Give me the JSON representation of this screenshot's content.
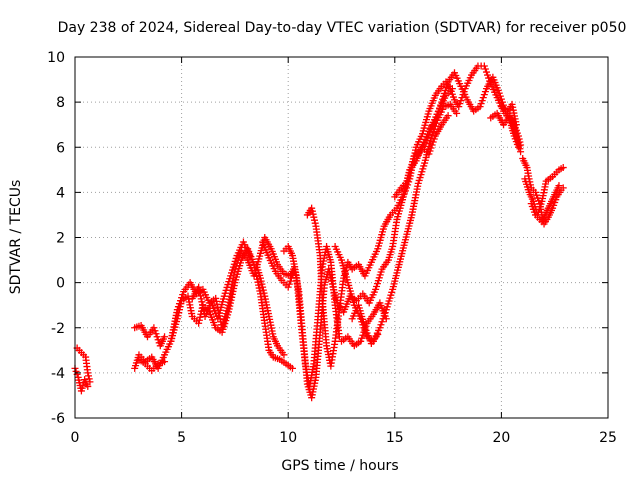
{
  "chart_data": {
    "type": "scatter",
    "title": "Day 238 of 2024, Sidereal Day-to-day VTEC variation (SDTVAR) for receiver p050",
    "xlabel": "GPS time / hours",
    "ylabel": "SDTVAR / TECUs",
    "xlim": [
      0,
      25
    ],
    "ylim": [
      -6,
      10
    ],
    "xticks": [
      0,
      5,
      10,
      15,
      20,
      25
    ],
    "yticks": [
      -6,
      -4,
      -2,
      0,
      2,
      4,
      6,
      8,
      10
    ],
    "grid": true,
    "marker": "+",
    "color": "#ff0000",
    "series": [
      {
        "name": "p050",
        "traces": [
          [
            [
              0.0,
              -3.8
            ],
            [
              0.15,
              -4.2
            ],
            [
              0.3,
              -4.8
            ],
            [
              0.45,
              -4.3
            ],
            [
              0.6,
              -4.6
            ]
          ],
          [
            [
              0.1,
              -2.9
            ],
            [
              0.3,
              -3.1
            ],
            [
              0.5,
              -3.3
            ],
            [
              0.6,
              -4.0
            ],
            [
              0.7,
              -4.4
            ]
          ],
          [
            [
              2.8,
              -3.8
            ],
            [
              3.0,
              -3.2
            ],
            [
              3.3,
              -3.5
            ],
            [
              3.6,
              -3.3
            ],
            [
              3.9,
              -3.8
            ],
            [
              4.2,
              -3.2
            ],
            [
              4.5,
              -2.6
            ],
            [
              4.8,
              -1.6
            ],
            [
              5.0,
              -0.8
            ],
            [
              5.3,
              -0.6
            ],
            [
              5.5,
              -1.5
            ],
            [
              5.8,
              -1.8
            ],
            [
              6.0,
              -1.0
            ],
            [
              6.3,
              -1.3
            ],
            [
              6.6,
              -2.0
            ],
            [
              6.9,
              -2.2
            ],
            [
              7.2,
              -1.3
            ],
            [
              7.5,
              0.0
            ],
            [
              7.8,
              1.0
            ],
            [
              8.1,
              1.5
            ],
            [
              8.4,
              0.8
            ],
            [
              8.7,
              -0.5
            ],
            [
              8.9,
              -1.8
            ],
            [
              9.1,
              -3.0
            ],
            [
              9.3,
              -3.3
            ],
            [
              9.6,
              -3.4
            ],
            [
              9.9,
              -3.6
            ],
            [
              10.2,
              -3.8
            ]
          ],
          [
            [
              2.8,
              -2.0
            ],
            [
              3.1,
              -1.9
            ],
            [
              3.4,
              -2.4
            ],
            [
              3.7,
              -2.0
            ],
            [
              4.0,
              -2.8
            ],
            [
              4.2,
              -2.4
            ]
          ],
          [
            [
              3.0,
              -3.4
            ],
            [
              3.3,
              -3.6
            ],
            [
              3.6,
              -3.9
            ],
            [
              3.9,
              -3.6
            ],
            [
              4.2,
              -3.5
            ]
          ],
          [
            [
              4.5,
              -2.6
            ],
            [
              4.8,
              -1.2
            ],
            [
              5.1,
              -0.4
            ],
            [
              5.4,
              0.0
            ],
            [
              5.7,
              -0.5
            ],
            [
              6.0,
              -0.3
            ],
            [
              6.3,
              -0.9
            ],
            [
              6.6,
              -0.7
            ],
            [
              6.9,
              -2.0
            ],
            [
              7.2,
              -1.0
            ],
            [
              7.5,
              0.6
            ],
            [
              7.8,
              1.4
            ],
            [
              8.1,
              1.0
            ],
            [
              8.4,
              0.3
            ],
            [
              8.7,
              1.3
            ],
            [
              8.9,
              2.0
            ],
            [
              9.2,
              1.5
            ],
            [
              9.5,
              0.8
            ],
            [
              9.8,
              0.4
            ],
            [
              10.1,
              0.3
            ],
            [
              10.3,
              0.7
            ]
          ],
          [
            [
              5.5,
              -0.7
            ],
            [
              5.8,
              -0.2
            ],
            [
              6.1,
              -1.5
            ],
            [
              6.4,
              -0.9
            ],
            [
              6.7,
              -1.6
            ],
            [
              7.0,
              -0.6
            ],
            [
              7.3,
              0.3
            ],
            [
              7.6,
              1.2
            ],
            [
              7.9,
              1.8
            ],
            [
              8.2,
              1.2
            ]
          ],
          [
            [
              8.5,
              0.8
            ],
            [
              8.7,
              0.2
            ],
            [
              8.9,
              -0.6
            ],
            [
              9.1,
              -1.5
            ],
            [
              9.3,
              -2.4
            ],
            [
              9.5,
              -2.8
            ],
            [
              9.8,
              -3.2
            ]
          ],
          [
            [
              8.8,
              1.8
            ],
            [
              9.1,
              1.1
            ],
            [
              9.4,
              0.5
            ],
            [
              9.7,
              0.1
            ],
            [
              10.0,
              -0.2
            ],
            [
              10.3,
              0.6
            ],
            [
              10.5,
              -0.4
            ],
            [
              10.7,
              -2.5
            ],
            [
              10.9,
              -4.5
            ],
            [
              11.1,
              -5.1
            ],
            [
              11.3,
              -4.2
            ],
            [
              11.5,
              -2.2
            ],
            [
              11.7,
              -0.1
            ],
            [
              11.9,
              0.6
            ],
            [
              12.1,
              -0.2
            ],
            [
              12.3,
              -0.9
            ],
            [
              12.6,
              -1.3
            ],
            [
              12.9,
              -0.6
            ],
            [
              13.2,
              -0.8
            ],
            [
              13.5,
              -0.5
            ],
            [
              13.8,
              -0.9
            ],
            [
              14.1,
              -0.3
            ],
            [
              14.4,
              0.6
            ],
            [
              14.7,
              1.0
            ],
            [
              14.9,
              1.6
            ],
            [
              15.1,
              2.8
            ],
            [
              15.4,
              3.8
            ],
            [
              15.7,
              4.6
            ],
            [
              16.0,
              6.0
            ],
            [
              16.3,
              6.6
            ],
            [
              16.6,
              7.6
            ],
            [
              16.9,
              8.3
            ],
            [
              17.2,
              8.7
            ],
            [
              17.4,
              8.9
            ],
            [
              17.6,
              8.6
            ],
            [
              17.8,
              8.1
            ],
            [
              18.0,
              7.8
            ],
            [
              18.3,
              8.6
            ],
            [
              18.6,
              9.2
            ],
            [
              18.9,
              9.6
            ],
            [
              19.2,
              9.6
            ],
            [
              19.5,
              8.8
            ],
            [
              19.8,
              8.2
            ],
            [
              20.1,
              7.6
            ],
            [
              20.4,
              7.2
            ],
            [
              20.6,
              6.5
            ],
            [
              20.8,
              6.0
            ]
          ],
          [
            [
              9.8,
              1.4
            ],
            [
              10.0,
              1.6
            ],
            [
              10.2,
              1.2
            ],
            [
              10.4,
              0.2
            ],
            [
              10.6,
              -1.8
            ],
            [
              10.8,
              -3.6
            ],
            [
              11.0,
              -4.6
            ],
            [
              11.2,
              -3.6
            ],
            [
              11.4,
              -1.5
            ],
            [
              11.6,
              0.7
            ],
            [
              11.8,
              1.6
            ],
            [
              12.0,
              0.9
            ],
            [
              12.2,
              -1.0
            ],
            [
              12.4,
              -2.4
            ]
          ],
          [
            [
              10.9,
              3.0
            ],
            [
              11.1,
              3.3
            ],
            [
              11.3,
              2.5
            ],
            [
              11.5,
              1.2
            ],
            [
              11.6,
              -0.8
            ],
            [
              11.8,
              -2.8
            ],
            [
              12.0,
              -3.7
            ],
            [
              12.2,
              -2.6
            ],
            [
              12.4,
              -1.2
            ],
            [
              12.6,
              0.2
            ],
            [
              12.8,
              0.9
            ],
            [
              13.0,
              0.6
            ],
            [
              13.3,
              0.8
            ],
            [
              13.6,
              0.3
            ],
            [
              13.9,
              0.9
            ],
            [
              14.2,
              1.5
            ],
            [
              14.5,
              2.5
            ],
            [
              14.8,
              3.0
            ],
            [
              15.1,
              3.3
            ],
            [
              15.4,
              3.9
            ],
            [
              15.7,
              5.0
            ],
            [
              16.0,
              5.4
            ],
            [
              16.3,
              6.1
            ],
            [
              16.6,
              6.7
            ],
            [
              16.9,
              7.2
            ],
            [
              17.2,
              8.0
            ],
            [
              17.5,
              8.9
            ],
            [
              17.8,
              9.3
            ],
            [
              18.1,
              8.7
            ],
            [
              18.4,
              8.1
            ],
            [
              18.7,
              7.6
            ],
            [
              19.0,
              7.8
            ],
            [
              19.3,
              8.6
            ],
            [
              19.6,
              9.1
            ],
            [
              19.9,
              8.4
            ],
            [
              20.2,
              7.6
            ],
            [
              20.5,
              7.3
            ],
            [
              20.7,
              6.6
            ]
          ],
          [
            [
              12.2,
              1.6
            ],
            [
              12.5,
              1.0
            ],
            [
              12.8,
              0.0
            ],
            [
              13.1,
              -1.0
            ],
            [
              13.4,
              -1.6
            ],
            [
              13.7,
              -2.4
            ],
            [
              14.0,
              -2.6
            ],
            [
              14.3,
              -2.0
            ],
            [
              14.6,
              -1.2
            ],
            [
              14.9,
              -0.3
            ],
            [
              15.2,
              0.8
            ],
            [
              15.5,
              1.9
            ],
            [
              15.8,
              3.0
            ],
            [
              16.1,
              4.4
            ],
            [
              16.4,
              5.3
            ],
            [
              16.7,
              6.4
            ],
            [
              17.0,
              7.2
            ],
            [
              17.3,
              7.8
            ],
            [
              17.6,
              7.9
            ],
            [
              17.9,
              7.5
            ]
          ],
          [
            [
              12.5,
              -2.6
            ],
            [
              12.8,
              -2.4
            ],
            [
              13.1,
              -2.8
            ],
            [
              13.4,
              -2.6
            ],
            [
              13.7,
              -1.8
            ],
            [
              14.0,
              -1.4
            ],
            [
              14.3,
              -0.9
            ],
            [
              14.6,
              -1.6
            ]
          ],
          [
            [
              13.0,
              -1.6
            ],
            [
              13.3,
              -1.0
            ],
            [
              13.6,
              -2.0
            ],
            [
              13.9,
              -2.7
            ],
            [
              14.2,
              -2.3
            ]
          ],
          [
            [
              15.0,
              3.8
            ],
            [
              15.3,
              4.2
            ],
            [
              15.6,
              4.5
            ],
            [
              15.9,
              5.6
            ],
            [
              16.2,
              5.9
            ],
            [
              16.5,
              6.3
            ],
            [
              16.8,
              7.1
            ],
            [
              17.1,
              7.7
            ],
            [
              17.4,
              8.3
            ],
            [
              17.7,
              8.6
            ]
          ],
          [
            [
              16.0,
              5.5
            ],
            [
              16.3,
              6.0
            ],
            [
              16.6,
              5.7
            ],
            [
              16.9,
              6.5
            ],
            [
              17.2,
              7.0
            ],
            [
              17.5,
              7.4
            ]
          ],
          [
            [
              19.5,
              7.3
            ],
            [
              19.8,
              7.5
            ],
            [
              20.1,
              7.0
            ],
            [
              20.4,
              7.4
            ],
            [
              20.6,
              6.8
            ],
            [
              20.8,
              6.2
            ],
            [
              20.9,
              5.8
            ]
          ],
          [
            [
              20.0,
              7.8
            ],
            [
              20.3,
              7.6
            ],
            [
              20.5,
              7.9
            ],
            [
              20.7,
              7.0
            ]
          ],
          [
            [
              20.3,
              7.4
            ],
            [
              20.6,
              7.0
            ],
            [
              20.8,
              6.5
            ],
            [
              20.9,
              6.1
            ]
          ],
          [
            [
              21.0,
              5.5
            ],
            [
              21.2,
              5.1
            ],
            [
              21.3,
              4.6
            ],
            [
              21.4,
              4.2
            ],
            [
              21.6,
              4.0
            ],
            [
              21.8,
              3.5
            ],
            [
              21.9,
              3.0
            ],
            [
              22.0,
              2.6
            ],
            [
              22.2,
              2.9
            ],
            [
              22.4,
              3.3
            ],
            [
              22.6,
              3.8
            ],
            [
              22.8,
              4.1
            ],
            [
              22.9,
              4.2
            ]
          ],
          [
            [
              21.1,
              4.6
            ],
            [
              21.3,
              4.0
            ],
            [
              21.5,
              3.6
            ],
            [
              21.7,
              3.0
            ],
            [
              21.9,
              3.6
            ],
            [
              22.1,
              4.5
            ],
            [
              22.4,
              4.7
            ],
            [
              22.7,
              5.0
            ],
            [
              22.9,
              5.1
            ]
          ],
          [
            [
              21.4,
              3.5
            ],
            [
              21.6,
              3.0
            ],
            [
              21.9,
              2.7
            ],
            [
              22.1,
              3.1
            ],
            [
              22.3,
              3.5
            ],
            [
              22.5,
              3.9
            ],
            [
              22.7,
              4.3
            ]
          ]
        ]
      }
    ]
  }
}
